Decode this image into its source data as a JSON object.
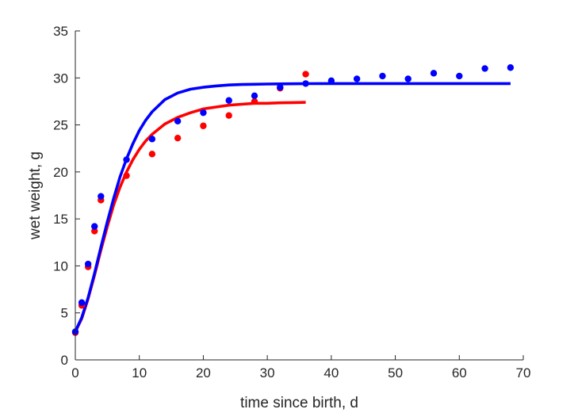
{
  "chart_data": {
    "type": "scatter",
    "title": "",
    "xlabel": "time since birth, d",
    "ylabel": "wet weight, g",
    "xlim": [
      0,
      70
    ],
    "ylim": [
      0,
      35
    ],
    "xticks": [
      0,
      10,
      20,
      30,
      40,
      50,
      60,
      70
    ],
    "yticks": [
      0,
      5,
      10,
      15,
      20,
      25,
      30,
      35
    ],
    "grid": false,
    "legend": "none",
    "series": [
      {
        "kind": "points",
        "color": "#ff0000",
        "x": [
          0,
          1,
          2,
          3,
          4,
          8,
          12,
          16,
          20,
          24,
          28,
          32,
          36
        ],
        "y": [
          2.9,
          5.8,
          9.9,
          13.7,
          17.0,
          19.6,
          21.9,
          23.6,
          24.9,
          26.0,
          27.5,
          28.9,
          30.4
        ]
      },
      {
        "kind": "points",
        "color": "#0000ff",
        "x": [
          0,
          1,
          2,
          3,
          4,
          8,
          12,
          16,
          20,
          24,
          28,
          32,
          36,
          40,
          44,
          48,
          52,
          56,
          60,
          64,
          68
        ],
        "y": [
          3.0,
          6.1,
          10.2,
          14.2,
          17.4,
          21.3,
          23.5,
          25.4,
          26.3,
          27.6,
          28.1,
          29.0,
          29.4,
          29.7,
          29.9,
          30.2,
          29.9,
          30.5,
          30.2,
          31.0,
          31.1
        ]
      },
      {
        "kind": "line",
        "color": "#ff0000",
        "x": [
          0,
          1,
          2,
          3,
          4,
          5,
          6,
          7,
          8,
          9,
          10,
          11,
          12,
          14,
          16,
          18,
          20,
          22,
          24,
          26,
          28,
          30,
          32,
          34,
          36
        ],
        "y": [
          3.0,
          4.4,
          6.5,
          9.0,
          11.7,
          14.2,
          16.5,
          18.4,
          20.0,
          21.3,
          22.4,
          23.3,
          24.0,
          25.1,
          25.8,
          26.3,
          26.7,
          26.9,
          27.1,
          27.2,
          27.3,
          27.3,
          27.35,
          27.38,
          27.4
        ]
      },
      {
        "kind": "line",
        "color": "#0000ff",
        "x": [
          0,
          1,
          2,
          3,
          4,
          5,
          6,
          7,
          8,
          9,
          10,
          11,
          12,
          14,
          16,
          18,
          20,
          22,
          24,
          26,
          28,
          30,
          32,
          36,
          40,
          44,
          48,
          52,
          56,
          60,
          64,
          68
        ],
        "y": [
          3.0,
          4.5,
          6.6,
          9.2,
          12.0,
          14.7,
          17.2,
          19.5,
          21.4,
          23.0,
          24.4,
          25.5,
          26.4,
          27.7,
          28.4,
          28.8,
          29.0,
          29.15,
          29.25,
          29.3,
          29.32,
          29.35,
          29.37,
          29.39,
          29.4,
          29.4,
          29.4,
          29.4,
          29.4,
          29.4,
          29.4,
          29.4
        ]
      }
    ]
  }
}
